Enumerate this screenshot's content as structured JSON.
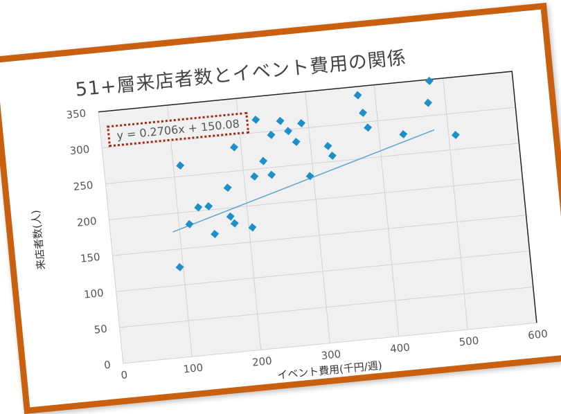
{
  "chart_data": {
    "type": "scatter",
    "title": "51+層来店者数とイベント費用の関係",
    "xlabel": "イベント費用(千円/週)",
    "ylabel": "来店者数(人)",
    "xlim": [
      0,
      600
    ],
    "ylim": [
      0,
      350
    ],
    "x_ticks": [
      "0",
      "100",
      "200",
      "300",
      "400",
      "500",
      "600"
    ],
    "y_ticks": [
      "0",
      "50",
      "100",
      "150",
      "200",
      "250",
      "300",
      "350"
    ],
    "grid": true,
    "marker": "diamond",
    "point_color": "#1f8fc8",
    "frame_color": "#c8600f",
    "trendline": {
      "equation": "y = 0.2706x + 150.08",
      "slope": 0.2706,
      "intercept": 150.08,
      "x_range": [
        90,
        480
      ],
      "color": "#5aa6d0"
    },
    "points": [
      [
        95,
        125
      ],
      [
        110,
        265
      ],
      [
        115,
        183
      ],
      [
        130,
        205
      ],
      [
        145,
        205
      ],
      [
        150,
        166
      ],
      [
        175,
        228
      ],
      [
        175,
        188
      ],
      [
        180,
        178
      ],
      [
        190,
        283
      ],
      [
        205,
        170
      ],
      [
        215,
        240
      ],
      [
        225,
        318
      ],
      [
        230,
        260
      ],
      [
        240,
        240
      ],
      [
        245,
        295
      ],
      [
        260,
        313
      ],
      [
        270,
        298
      ],
      [
        280,
        282
      ],
      [
        290,
        307
      ],
      [
        295,
        233
      ],
      [
        325,
        272
      ],
      [
        330,
        258
      ],
      [
        375,
        338
      ],
      [
        380,
        313
      ],
      [
        385,
        292
      ],
      [
        435,
        278
      ],
      [
        475,
        318
      ],
      [
        480,
        348
      ],
      [
        510,
        270
      ]
    ]
  }
}
